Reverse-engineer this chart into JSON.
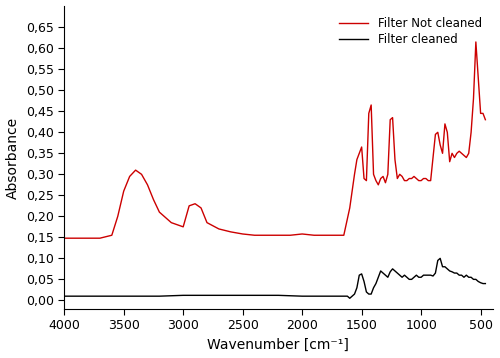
{
  "title": "",
  "xlabel": "Wavenumber [cm⁻¹]",
  "ylabel": "Absorbance",
  "xlim": [
    4000,
    400
  ],
  "ylim": [
    -0.02,
    0.7
  ],
  "yticks": [
    0.0,
    0.05,
    0.1,
    0.15,
    0.2,
    0.25,
    0.3,
    0.35,
    0.4,
    0.45,
    0.5,
    0.55,
    0.6,
    0.65
  ],
  "xticks": [
    4000,
    3500,
    3000,
    2500,
    2000,
    1500,
    1000,
    500
  ],
  "legend_labels": [
    "Filter Not cleaned",
    "Filter cleaned"
  ],
  "legend_colors": [
    "#cc0000",
    "#000000"
  ],
  "line_width": 1.0,
  "background_color": "#ffffff",
  "decimal_comma": true,
  "red_line": {
    "segments": [
      {
        "x": [
          4000,
          3800,
          3700,
          3600,
          3550,
          3500,
          3450,
          3400,
          3350,
          3300,
          3250,
          3200,
          3100,
          3000,
          2950,
          2900,
          2850,
          2800,
          2700,
          2600,
          2500,
          2400,
          2300,
          2200,
          2100,
          2000,
          1900,
          1850,
          1800,
          1750,
          1700,
          1650,
          1600,
          1580,
          1560,
          1540,
          1500,
          1480,
          1460,
          1440,
          1420,
          1400,
          1380,
          1360,
          1340,
          1320,
          1300,
          1280,
          1260,
          1240,
          1220,
          1200,
          1180,
          1160,
          1140,
          1120,
          1100,
          1080,
          1060,
          1040,
          1020,
          1000,
          980,
          960,
          940,
          920,
          900,
          880,
          860,
          840,
          820,
          800,
          780,
          760,
          740,
          720,
          700,
          680,
          660,
          640,
          620,
          600,
          580,
          560,
          540,
          520,
          500,
          480,
          460
        ],
        "y": [
          0.148,
          0.148,
          0.148,
          0.155,
          0.2,
          0.26,
          0.295,
          0.31,
          0.3,
          0.275,
          0.24,
          0.21,
          0.185,
          0.175,
          0.225,
          0.23,
          0.22,
          0.185,
          0.17,
          0.163,
          0.158,
          0.155,
          0.155,
          0.155,
          0.155,
          0.158,
          0.155,
          0.155,
          0.155,
          0.155,
          0.155,
          0.155,
          0.22,
          0.26,
          0.3,
          0.335,
          0.365,
          0.29,
          0.285,
          0.445,
          0.465,
          0.3,
          0.285,
          0.275,
          0.29,
          0.295,
          0.28,
          0.3,
          0.43,
          0.435,
          0.335,
          0.29,
          0.3,
          0.295,
          0.285,
          0.285,
          0.29,
          0.29,
          0.295,
          0.29,
          0.285,
          0.285,
          0.29,
          0.29,
          0.285,
          0.285,
          0.34,
          0.395,
          0.4,
          0.37,
          0.35,
          0.42,
          0.4,
          0.33,
          0.35,
          0.34,
          0.35,
          0.355,
          0.35,
          0.345,
          0.34,
          0.35,
          0.4,
          0.48,
          0.615,
          0.53,
          0.445,
          0.445,
          0.43
        ]
      }
    ]
  },
  "black_line": {
    "segments": [
      {
        "x": [
          4000,
          3800,
          3600,
          3400,
          3200,
          3000,
          2800,
          2600,
          2400,
          2200,
          2000,
          1900,
          1850,
          1800,
          1750,
          1700,
          1650,
          1620,
          1600,
          1580,
          1560,
          1540,
          1520,
          1500,
          1480,
          1460,
          1440,
          1420,
          1400,
          1380,
          1360,
          1340,
          1320,
          1300,
          1280,
          1260,
          1240,
          1220,
          1200,
          1180,
          1160,
          1140,
          1120,
          1100,
          1080,
          1060,
          1040,
          1020,
          1000,
          980,
          960,
          940,
          920,
          900,
          880,
          860,
          840,
          820,
          800,
          780,
          760,
          740,
          720,
          700,
          680,
          660,
          640,
          620,
          600,
          580,
          560,
          540,
          520,
          500,
          480,
          460
        ],
        "y": [
          0.01,
          0.01,
          0.01,
          0.01,
          0.01,
          0.012,
          0.012,
          0.012,
          0.012,
          0.012,
          0.01,
          0.01,
          0.01,
          0.01,
          0.01,
          0.01,
          0.01,
          0.01,
          0.005,
          0.01,
          0.015,
          0.03,
          0.06,
          0.063,
          0.045,
          0.02,
          0.015,
          0.015,
          0.03,
          0.04,
          0.055,
          0.07,
          0.065,
          0.06,
          0.055,
          0.068,
          0.075,
          0.07,
          0.065,
          0.06,
          0.055,
          0.06,
          0.055,
          0.05,
          0.05,
          0.055,
          0.06,
          0.055,
          0.055,
          0.06,
          0.06,
          0.06,
          0.06,
          0.058,
          0.065,
          0.095,
          0.1,
          0.08,
          0.08,
          0.075,
          0.07,
          0.068,
          0.065,
          0.065,
          0.06,
          0.06,
          0.055,
          0.06,
          0.055,
          0.055,
          0.05,
          0.05,
          0.045,
          0.042,
          0.04,
          0.04
        ]
      }
    ]
  }
}
